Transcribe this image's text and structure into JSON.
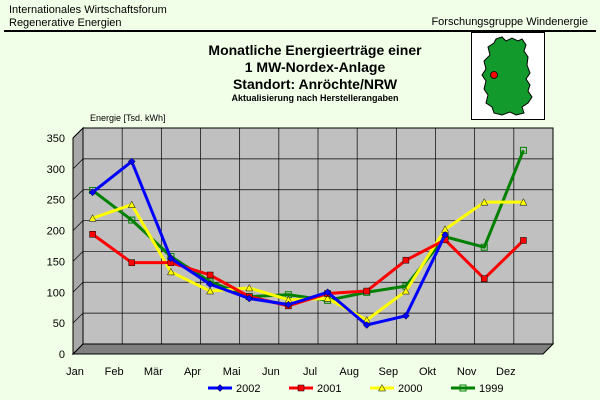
{
  "header": {
    "org_line1": "Internationales Wirtschaftsforum",
    "org_line2": "Regenerative Energien",
    "group": "Forschungsgruppe Windenergie"
  },
  "colors": {
    "background": "#f1ffe9",
    "plot_area": "#c0c0c0",
    "map_fill": "#139a2c",
    "map_marker": "#ff0000"
  },
  "chart_data": {
    "type": "line",
    "title_lines": [
      "Monatliche Energieerträge einer",
      "1 MW-Nordex-Anlage",
      "Standort: Anröchte/NRW"
    ],
    "subtitle": "Aktualisierung nach Herstellerangaben",
    "ylabel": "Energie [Tsd. kWh]",
    "xlabel": "",
    "ylim": [
      0,
      350
    ],
    "yticks": [
      0,
      50,
      100,
      150,
      200,
      250,
      300,
      350
    ],
    "grid": true,
    "legend_position": "bottom",
    "categories": [
      "Jan",
      "Feb",
      "Mär",
      "Apr",
      "Mai",
      "Jun",
      "Jul",
      "Aug",
      "Sep",
      "Okt",
      "Nov",
      "Dez"
    ],
    "series": [
      {
        "name": "2002",
        "color": "#0000ff",
        "marker": "diamond",
        "values": [
          262,
          312,
          155,
          113,
          90,
          80,
          100,
          47,
          62,
          193,
          null,
          null
        ]
      },
      {
        "name": "2001",
        "color": "#ff0000",
        "marker": "square",
        "values": [
          194,
          148,
          148,
          128,
          93,
          78,
          98,
          102,
          152,
          185,
          122,
          184
        ]
      },
      {
        "name": "2000",
        "color": "#ffff00",
        "marker": "triangle",
        "values": [
          220,
          242,
          133,
          102,
          107,
          88,
          90,
          55,
          102,
          202,
          246,
          246
        ]
      },
      {
        "name": "1999",
        "color": "#008000",
        "marker": "x",
        "values": [
          265,
          217,
          158,
          117,
          93,
          96,
          87,
          100,
          110,
          190,
          173,
          330
        ]
      }
    ]
  }
}
